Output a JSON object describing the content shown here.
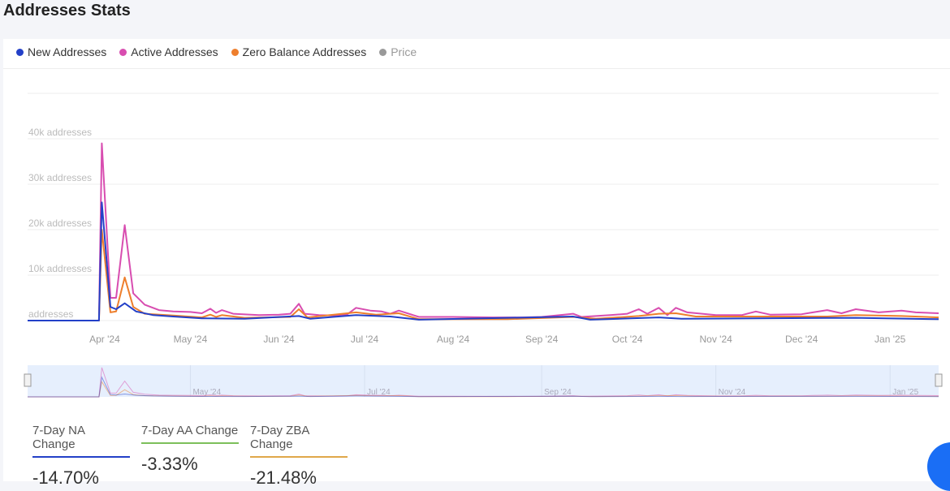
{
  "title": "Addresses Stats",
  "legend": [
    {
      "label": "New Addresses",
      "color": "#2340c8"
    },
    {
      "label": "Active Addresses",
      "color": "#d84db0"
    },
    {
      "label": "Zero Balance Addresses",
      "color": "#ee7f2d"
    },
    {
      "label": "Price",
      "color": "#999999"
    }
  ],
  "chart_data": {
    "type": "line",
    "ylim": [
      0,
      40000
    ],
    "yticks": [
      {
        "v": 0,
        "label": "addresses"
      },
      {
        "v": 10000,
        "label": "10k addresses"
      },
      {
        "v": 20000,
        "label": "20k addresses"
      },
      {
        "v": 30000,
        "label": "30k addresses"
      },
      {
        "v": 40000,
        "label": "40k addresses"
      }
    ],
    "xlim": [
      "2024-03-05",
      "2025-01-18"
    ],
    "xticks": [
      {
        "d": "2024-04-01",
        "label": "Apr '24"
      },
      {
        "d": "2024-05-01",
        "label": "May '24"
      },
      {
        "d": "2024-06-01",
        "label": "Jun '24"
      },
      {
        "d": "2024-07-01",
        "label": "Jul '24"
      },
      {
        "d": "2024-08-01",
        "label": "Aug '24"
      },
      {
        "d": "2024-09-01",
        "label": "Sep '24"
      },
      {
        "d": "2024-10-01",
        "label": "Oct '24"
      },
      {
        "d": "2024-11-01",
        "label": "Nov '24"
      },
      {
        "d": "2024-12-01",
        "label": "Dec '24"
      },
      {
        "d": "2025-01-01",
        "label": "Jan '25"
      }
    ],
    "navigator_ticks": [
      {
        "d": "2024-05-01",
        "label": "May '24"
      },
      {
        "d": "2024-07-01",
        "label": "Jul '24"
      },
      {
        "d": "2024-09-01",
        "label": "Sep '24"
      },
      {
        "d": "2024-11-01",
        "label": "Nov '24"
      },
      {
        "d": "2025-01-01",
        "label": "Jan '25"
      }
    ],
    "series": [
      {
        "name": "Active Addresses",
        "color": "#d84db0",
        "points": [
          [
            "2024-03-05",
            0
          ],
          [
            "2024-03-30",
            0
          ],
          [
            "2024-03-31",
            39000
          ],
          [
            "2024-04-03",
            5000
          ],
          [
            "2024-04-05",
            5000
          ],
          [
            "2024-04-08",
            21000
          ],
          [
            "2024-04-11",
            6000
          ],
          [
            "2024-04-15",
            3500
          ],
          [
            "2024-04-20",
            2300
          ],
          [
            "2024-04-25",
            2000
          ],
          [
            "2024-05-01",
            1900
          ],
          [
            "2024-05-05",
            1600
          ],
          [
            "2024-05-08",
            2600
          ],
          [
            "2024-05-10",
            1700
          ],
          [
            "2024-05-12",
            2300
          ],
          [
            "2024-05-16",
            1500
          ],
          [
            "2024-05-25",
            1200
          ],
          [
            "2024-06-01",
            1300
          ],
          [
            "2024-06-05",
            1500
          ],
          [
            "2024-06-08",
            3700
          ],
          [
            "2024-06-10",
            1500
          ],
          [
            "2024-06-15",
            1200
          ],
          [
            "2024-06-20",
            1100
          ],
          [
            "2024-06-25",
            1400
          ],
          [
            "2024-06-28",
            2800
          ],
          [
            "2024-07-03",
            2200
          ],
          [
            "2024-07-07",
            2000
          ],
          [
            "2024-07-10",
            1500
          ],
          [
            "2024-07-13",
            2200
          ],
          [
            "2024-07-20",
            800
          ],
          [
            "2024-08-01",
            800
          ],
          [
            "2024-08-15",
            700
          ],
          [
            "2024-08-25",
            700
          ],
          [
            "2024-09-01",
            800
          ],
          [
            "2024-09-12",
            1500
          ],
          [
            "2024-09-15",
            800
          ],
          [
            "2024-09-25",
            1200
          ],
          [
            "2024-10-01",
            1500
          ],
          [
            "2024-10-05",
            2500
          ],
          [
            "2024-10-08",
            1500
          ],
          [
            "2024-10-12",
            2800
          ],
          [
            "2024-10-15",
            1200
          ],
          [
            "2024-10-18",
            2800
          ],
          [
            "2024-10-22",
            1800
          ],
          [
            "2024-11-01",
            1200
          ],
          [
            "2024-11-10",
            1200
          ],
          [
            "2024-11-15",
            2000
          ],
          [
            "2024-11-20",
            1300
          ],
          [
            "2024-12-01",
            1400
          ],
          [
            "2024-12-05",
            1800
          ],
          [
            "2024-12-10",
            2300
          ],
          [
            "2024-12-15",
            1600
          ],
          [
            "2024-12-20",
            2500
          ],
          [
            "2024-12-28",
            1800
          ],
          [
            "2025-01-05",
            2200
          ],
          [
            "2025-01-10",
            1800
          ],
          [
            "2025-01-18",
            1600
          ]
        ]
      },
      {
        "name": "Zero Balance Addresses",
        "color": "#ee7f2d",
        "points": [
          [
            "2024-03-05",
            0
          ],
          [
            "2024-03-30",
            0
          ],
          [
            "2024-03-31",
            20000
          ],
          [
            "2024-04-03",
            1800
          ],
          [
            "2024-04-05",
            2000
          ],
          [
            "2024-04-08",
            9500
          ],
          [
            "2024-04-11",
            3000
          ],
          [
            "2024-04-15",
            1500
          ],
          [
            "2024-04-25",
            1100
          ],
          [
            "2024-05-05",
            700
          ],
          [
            "2024-05-08",
            1300
          ],
          [
            "2024-05-10",
            800
          ],
          [
            "2024-05-12",
            1200
          ],
          [
            "2024-05-20",
            600
          ],
          [
            "2024-06-05",
            800
          ],
          [
            "2024-06-08",
            2500
          ],
          [
            "2024-06-11",
            700
          ],
          [
            "2024-06-28",
            1800
          ],
          [
            "2024-07-05",
            1300
          ],
          [
            "2024-07-13",
            1600
          ],
          [
            "2024-07-20",
            300
          ],
          [
            "2024-08-20",
            300
          ],
          [
            "2024-09-12",
            800
          ],
          [
            "2024-09-20",
            400
          ],
          [
            "2024-10-05",
            1000
          ],
          [
            "2024-10-12",
            1500
          ],
          [
            "2024-10-18",
            1600
          ],
          [
            "2024-10-25",
            900
          ],
          [
            "2024-11-15",
            900
          ],
          [
            "2024-12-10",
            900
          ],
          [
            "2024-12-20",
            1200
          ],
          [
            "2025-01-05",
            1000
          ],
          [
            "2025-01-18",
            700
          ]
        ]
      },
      {
        "name": "New Addresses",
        "color": "#2340c8",
        "points": [
          [
            "2024-03-05",
            0
          ],
          [
            "2024-03-30",
            0
          ],
          [
            "2024-03-31",
            26000
          ],
          [
            "2024-04-03",
            3000
          ],
          [
            "2024-04-05",
            2500
          ],
          [
            "2024-04-08",
            3800
          ],
          [
            "2024-04-12",
            2000
          ],
          [
            "2024-04-18",
            1200
          ],
          [
            "2024-04-25",
            900
          ],
          [
            "2024-05-05",
            500
          ],
          [
            "2024-05-20",
            400
          ],
          [
            "2024-06-08",
            1000
          ],
          [
            "2024-06-12",
            400
          ],
          [
            "2024-06-28",
            1200
          ],
          [
            "2024-07-10",
            900
          ],
          [
            "2024-07-20",
            200
          ],
          [
            "2024-09-12",
            900
          ],
          [
            "2024-09-18",
            200
          ],
          [
            "2024-10-12",
            700
          ],
          [
            "2024-10-20",
            400
          ],
          [
            "2024-12-20",
            600
          ],
          [
            "2025-01-18",
            300
          ]
        ]
      }
    ]
  },
  "stats": [
    {
      "label": "7-Day NA Change",
      "value": "-14.70%",
      "color": "#2340c8"
    },
    {
      "label": "7-Day AA Change",
      "value": "-3.33%",
      "color": "#7cbf5a"
    },
    {
      "label": "7-Day ZBA Change",
      "value": "-21.48%",
      "color": "#e0a84a"
    }
  ]
}
